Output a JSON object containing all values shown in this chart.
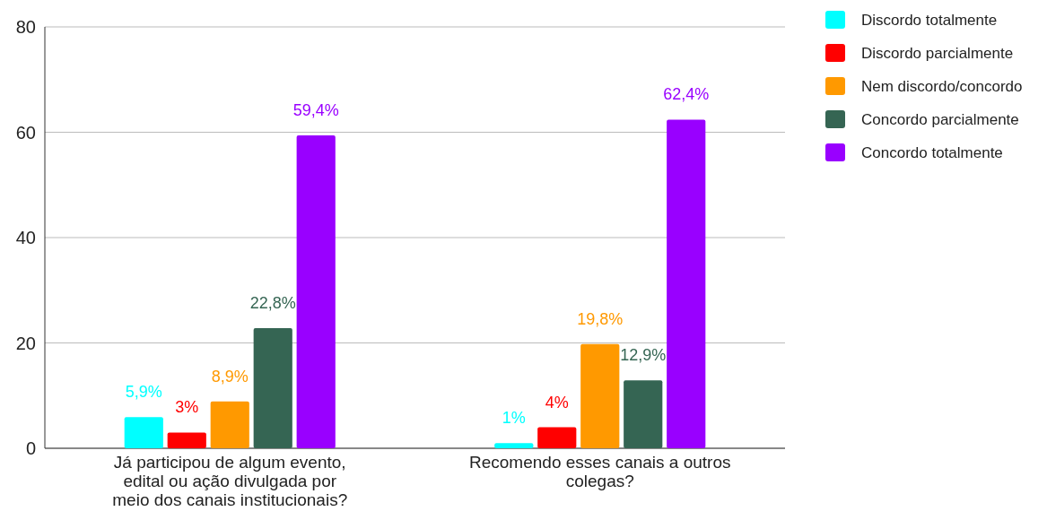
{
  "chart_data": {
    "type": "bar",
    "categories": [
      "Já participou de algum evento, edital ou ação divulgada por meio dos canais institucionais?",
      "Recomendo esses canais a outros colegas?"
    ],
    "series": [
      {
        "name": "Discordo totalmente",
        "color": "#00ffff",
        "values": [
          5.9,
          1
        ],
        "value_labels": [
          "5,9%",
          "1%"
        ]
      },
      {
        "name": "Discordo parcialmente",
        "color": "#ff0000",
        "values": [
          3,
          4
        ],
        "value_labels": [
          "3%",
          "4%"
        ]
      },
      {
        "name": "Nem discordo/concordo",
        "color": "#ff9900",
        "values": [
          8.9,
          19.8
        ],
        "value_labels": [
          "8,9%",
          "19,8%"
        ]
      },
      {
        "name": "Concordo parcialmente",
        "color": "#356553",
        "values": [
          22.8,
          12.9
        ],
        "value_labels": [
          "22,8%",
          "12,9%"
        ]
      },
      {
        "name": "Concordo totalmente",
        "color": "#9900ff",
        "values": [
          59.4,
          62.4
        ],
        "value_labels": [
          "59,4%",
          "62,4%"
        ]
      }
    ],
    "ylim": [
      0,
      80
    ],
    "yticks": [
      0,
      20,
      40,
      60,
      80
    ],
    "grid": "y",
    "legend": "right"
  }
}
